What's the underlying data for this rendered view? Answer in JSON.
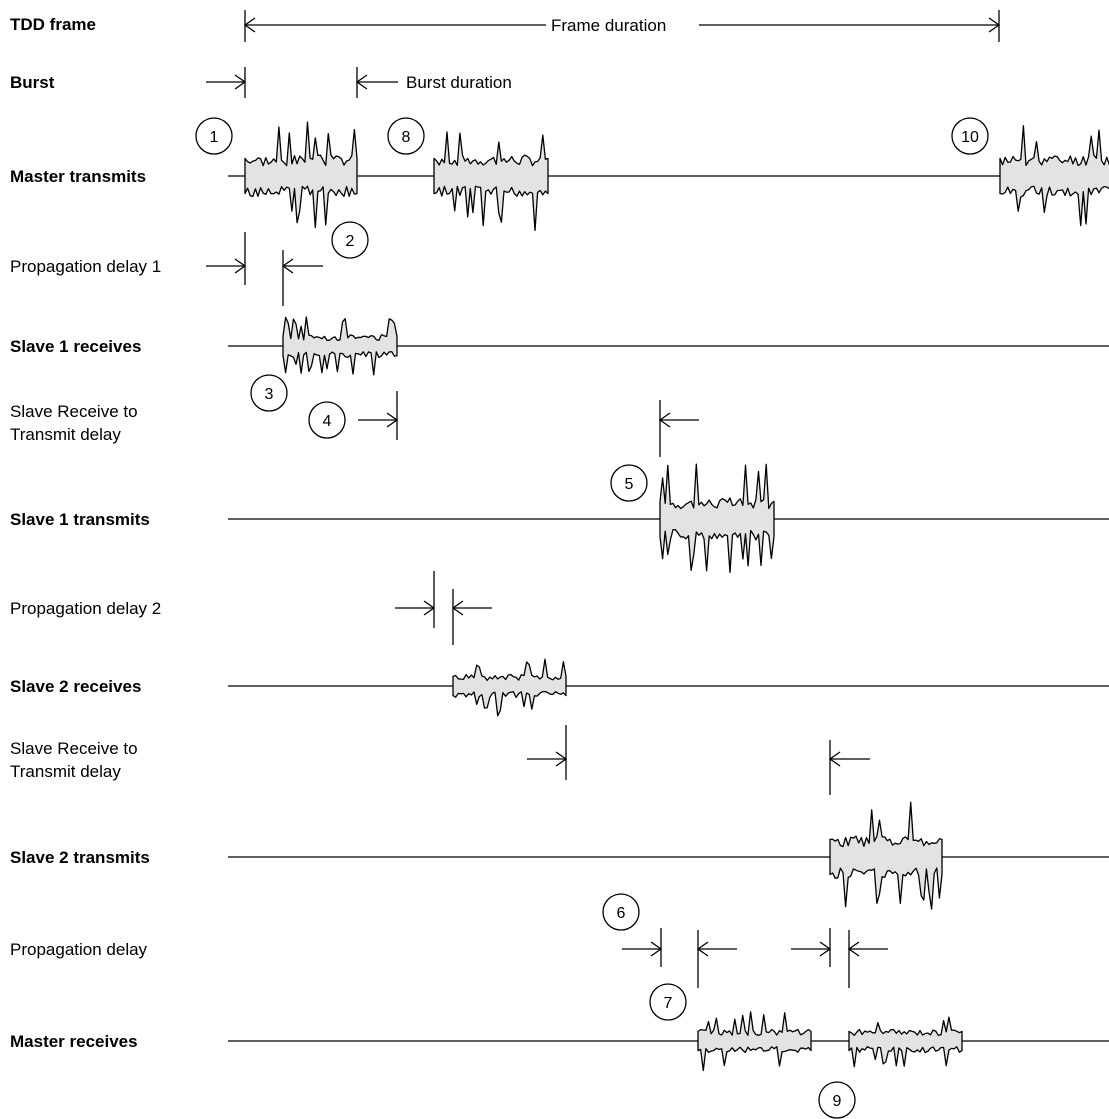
{
  "labels": {
    "tdd_frame": "TDD frame",
    "burst": "Burst",
    "master_transmits": "Master transmits",
    "propagation_delay_1": "Propagation delay 1",
    "slave1_receives": "Slave 1 receives",
    "slave_rx_tx_1_line1": "Slave Receive to",
    "slave_rx_tx_1_line2": "Transmit delay",
    "slave1_transmits": "Slave 1 transmits",
    "propagation_delay_2": "Propagation delay 2",
    "slave2_receives": "Slave 2 receives",
    "slave_rx_tx_2_line1": "Slave Receive to",
    "slave_rx_tx_2_line2": "Transmit delay",
    "slave2_transmits": "Slave 2 transmits",
    "propagation_delay": "Propagation delay",
    "master_receives": "Master receives"
  },
  "annotations": {
    "frame_duration": "Frame duration",
    "burst_duration": "Burst duration"
  },
  "markers": [
    "1",
    "2",
    "3",
    "4",
    "5",
    "6",
    "7",
    "8",
    "9",
    "10"
  ],
  "colors": {
    "burst_fill": "#e3e3e3",
    "line": "#000000"
  }
}
